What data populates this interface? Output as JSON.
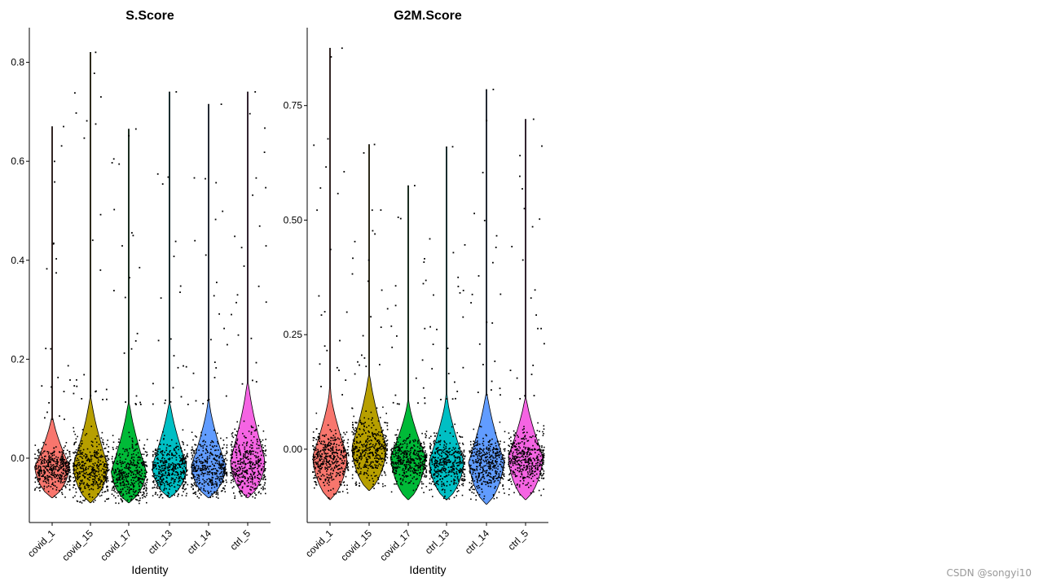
{
  "chart_data": [
    {
      "type": "violin",
      "title": "S.Score",
      "xlabel": "Identity",
      "ylabel": "",
      "ylim": [
        -0.13,
        0.87
      ],
      "yticks": [
        0.0,
        0.2,
        0.4,
        0.6,
        0.8
      ],
      "ytick_labels": [
        "0.0",
        "0.2",
        "0.4",
        "0.6",
        "0.8"
      ],
      "categories": [
        "covid_1",
        "covid_15",
        "covid_17",
        "ctrl_13",
        "ctrl_14",
        "ctrl_5"
      ],
      "colors": [
        "#F8766D",
        "#B79F00",
        "#00BA38",
        "#00BFC4",
        "#619CFF",
        "#F564E3"
      ],
      "series": [
        {
          "name": "covid_1",
          "min": -0.08,
          "q_mode": -0.02,
          "upper_body": 0.08,
          "max": 0.67
        },
        {
          "name": "covid_15",
          "min": -0.09,
          "q_mode": -0.02,
          "upper_body": 0.12,
          "max": 0.82
        },
        {
          "name": "covid_17",
          "min": -0.09,
          "q_mode": -0.03,
          "upper_body": 0.11,
          "max": 0.665
        },
        {
          "name": "ctrl_13",
          "min": -0.08,
          "q_mode": -0.02,
          "upper_body": 0.11,
          "max": 0.74
        },
        {
          "name": "ctrl_14",
          "min": -0.08,
          "q_mode": -0.02,
          "upper_body": 0.11,
          "max": 0.715
        },
        {
          "name": "ctrl_5",
          "min": -0.08,
          "q_mode": -0.01,
          "upper_body": 0.15,
          "max": 0.74
        }
      ]
    },
    {
      "type": "violin",
      "title": "G2M.Score",
      "xlabel": "Identity",
      "ylabel": "",
      "ylim": [
        -0.16,
        0.92
      ],
      "yticks": [
        0.0,
        0.25,
        0.5,
        0.75
      ],
      "ytick_labels": [
        "0.00",
        "0.25",
        "0.50",
        "0.75"
      ],
      "categories": [
        "covid_1",
        "covid_15",
        "covid_17",
        "ctrl_13",
        "ctrl_14",
        "ctrl_5"
      ],
      "colors": [
        "#F8766D",
        "#B79F00",
        "#00BA38",
        "#00BFC4",
        "#619CFF",
        "#F564E3"
      ],
      "series": [
        {
          "name": "covid_1",
          "min": -0.11,
          "q_mode": -0.02,
          "upper_body": 0.12,
          "max": 0.875
        },
        {
          "name": "covid_15",
          "min": -0.09,
          "q_mode": 0.0,
          "upper_body": 0.16,
          "max": 0.665
        },
        {
          "name": "covid_17",
          "min": -0.11,
          "q_mode": -0.02,
          "upper_body": 0.1,
          "max": 0.575
        },
        {
          "name": "ctrl_13",
          "min": -0.11,
          "q_mode": -0.03,
          "upper_body": 0.11,
          "max": 0.66
        },
        {
          "name": "ctrl_14",
          "min": -0.12,
          "q_mode": -0.03,
          "upper_body": 0.12,
          "max": 0.785
        },
        {
          "name": "ctrl_5",
          "min": -0.11,
          "q_mode": -0.02,
          "upper_body": 0.11,
          "max": 0.72
        }
      ]
    }
  ],
  "watermark": "CSDN @songyi10"
}
